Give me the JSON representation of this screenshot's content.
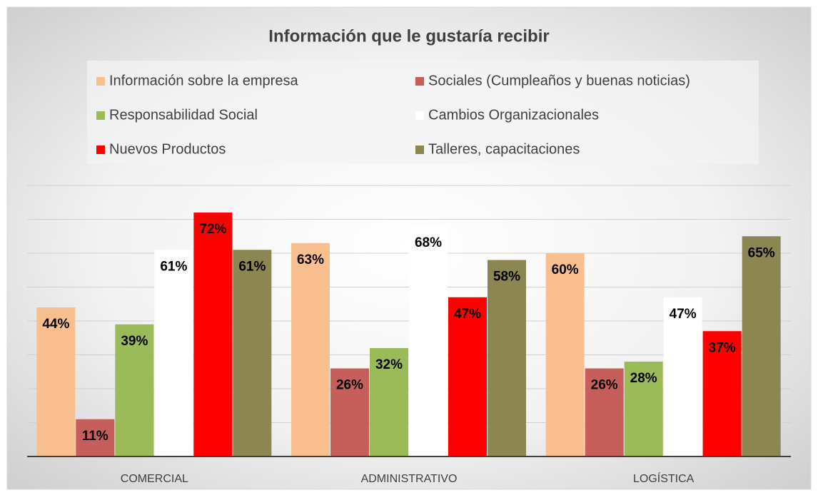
{
  "chart_data": {
    "type": "bar",
    "title": "Información que le gustaría recibir",
    "categories": [
      "COMERCIAL",
      "ADMINISTRATIVO",
      "LOGÍSTICA"
    ],
    "series": [
      {
        "name": "Información sobre la empresa",
        "color": "#f9bf8f",
        "values": [
          44,
          63,
          60
        ],
        "value_labels": [
          "44%",
          "63%",
          "60%"
        ]
      },
      {
        "name": "Sociales (Cumpleaños y buenas noticias)",
        "color": "#c65f5c",
        "values": [
          11,
          26,
          26
        ],
        "value_labels": [
          "11%",
          "26%",
          "26%"
        ]
      },
      {
        "name": "Responsabilidad Social",
        "color": "#9bbb59",
        "values": [
          39,
          32,
          28
        ],
        "value_labels": [
          "39%",
          "32%",
          "28%"
        ]
      },
      {
        "name": "Cambios Organizacionales",
        "color": "#ffffff",
        "values": [
          61,
          68,
          47
        ],
        "value_labels": [
          "61%",
          "68%",
          "47%"
        ]
      },
      {
        "name": "Nuevos Productos",
        "color": "#ff0000",
        "values": [
          72,
          47,
          37
        ],
        "value_labels": [
          "72%",
          "47%",
          "37%"
        ]
      },
      {
        "name": "Talleres, capacitaciones",
        "color": "#8c8652",
        "values": [
          61,
          58,
          65
        ],
        "value_labels": [
          "61%",
          "58%",
          "65%"
        ]
      }
    ],
    "ylim": [
      0,
      80
    ],
    "yticks": [
      0,
      10,
      20,
      30,
      40,
      50,
      60,
      70,
      80
    ],
    "grid": true,
    "legend": "top"
  }
}
